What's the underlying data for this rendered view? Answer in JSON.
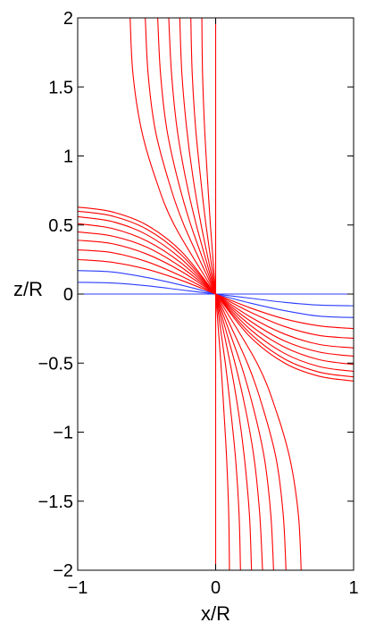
{
  "chart_data": {
    "type": "line",
    "title": "",
    "xlabel": "x/R",
    "ylabel": "z/R",
    "xlim": [
      -1,
      1
    ],
    "ylim": [
      -2,
      2
    ],
    "grid": false,
    "x_ticks": [
      -1,
      0,
      1
    ],
    "x_tick_labels": [
      "−1",
      "0",
      "1"
    ],
    "y_ticks": [
      -2,
      -1.5,
      -1,
      -0.5,
      0,
      0.5,
      1,
      1.5,
      2
    ],
    "y_tick_labels": [
      "−2",
      "−1.5",
      "−1",
      "−0.5",
      "0",
      "0.5",
      "1",
      "1.5",
      "2"
    ],
    "colors": {
      "red": "#ff0000",
      "blue": "#2a3cff"
    },
    "series": [
      {
        "color": "blue",
        "x": [
          -1,
          -0.75,
          -0.5,
          -0.25,
          0,
          0.25,
          0.5,
          0.75,
          1
        ],
        "y": [
          0,
          0,
          0,
          0,
          0,
          0,
          0,
          0,
          0
        ]
      },
      {
        "color": "blue",
        "x": [
          -1,
          -0.75,
          -0.5,
          -0.25,
          0,
          0.25,
          0.5,
          0.75,
          1
        ],
        "y": [
          0.085,
          0.08,
          0.06,
          0.03,
          0,
          -0.03,
          -0.06,
          -0.08,
          -0.085
        ]
      },
      {
        "color": "blue",
        "x": [
          -1,
          -0.75,
          -0.5,
          -0.25,
          0,
          0.25,
          0.5,
          0.75,
          1
        ],
        "y": [
          0.17,
          0.16,
          0.12,
          0.065,
          0,
          -0.065,
          -0.12,
          -0.16,
          -0.17
        ]
      },
      {
        "color": "red",
        "x": [
          -1,
          -0.75,
          -0.5,
          -0.25,
          0,
          0.25,
          0.5,
          0.75,
          1
        ],
        "y": [
          0.25,
          0.23,
          0.18,
          0.1,
          0,
          -0.1,
          -0.18,
          -0.23,
          -0.25
        ]
      },
      {
        "color": "red",
        "x": [
          -1,
          -0.75,
          -0.5,
          -0.25,
          0,
          0.25,
          0.5,
          0.75,
          1
        ],
        "y": [
          0.32,
          0.3,
          0.235,
          0.13,
          0,
          -0.13,
          -0.235,
          -0.3,
          -0.32
        ]
      },
      {
        "color": "red",
        "x": [
          -1,
          -0.75,
          -0.5,
          -0.25,
          0,
          0.25,
          0.5,
          0.75,
          1
        ],
        "y": [
          0.39,
          0.365,
          0.29,
          0.165,
          0,
          -0.165,
          -0.29,
          -0.365,
          -0.39
        ]
      },
      {
        "color": "red",
        "x": [
          -1,
          -0.75,
          -0.5,
          -0.25,
          0,
          0.25,
          0.5,
          0.75,
          1
        ],
        "y": [
          0.45,
          0.42,
          0.34,
          0.195,
          0,
          -0.195,
          -0.34,
          -0.42,
          -0.45
        ]
      },
      {
        "color": "red",
        "x": [
          -1,
          -0.75,
          -0.5,
          -0.25,
          0,
          0.25,
          0.5,
          0.75,
          1
        ],
        "y": [
          0.51,
          0.475,
          0.385,
          0.225,
          0,
          -0.225,
          -0.385,
          -0.475,
          -0.51
        ]
      },
      {
        "color": "red",
        "x": [
          -1,
          -0.75,
          -0.5,
          -0.25,
          0,
          0.25,
          0.5,
          0.75,
          1
        ],
        "y": [
          0.56,
          0.525,
          0.43,
          0.255,
          0,
          -0.255,
          -0.43,
          -0.525,
          -0.56
        ]
      },
      {
        "color": "red",
        "x": [
          -1,
          -0.75,
          -0.5,
          -0.25,
          0,
          0.25,
          0.5,
          0.75,
          1
        ],
        "y": [
          0.6,
          0.565,
          0.47,
          0.285,
          0,
          -0.285,
          -0.47,
          -0.565,
          -0.6
        ]
      },
      {
        "color": "red",
        "x": [
          -1,
          -0.75,
          -0.5,
          -0.25,
          0,
          0.25,
          0.5,
          0.75,
          1
        ],
        "y": [
          0.63,
          0.595,
          0.5,
          0.31,
          0,
          -0.31,
          -0.5,
          -0.595,
          -0.63
        ]
      },
      {
        "color": "red",
        "x": [
          0,
          0
        ],
        "y": [
          -2,
          2
        ]
      },
      {
        "color": "red",
        "x": [
          -0.62,
          -0.6,
          -0.54,
          -0.44,
          -0.3,
          0,
          0.3,
          0.44,
          0.54,
          0.6,
          0.62
        ],
        "y": [
          2,
          1.6,
          1.2,
          0.85,
          0.5,
          0,
          -0.5,
          -0.85,
          -1.2,
          -1.6,
          -2
        ]
      },
      {
        "color": "red",
        "x": [
          -0.51,
          -0.49,
          -0.44,
          -0.35,
          -0.23,
          0,
          0.23,
          0.35,
          0.44,
          0.49,
          0.51
        ],
        "y": [
          2,
          1.6,
          1.2,
          0.85,
          0.5,
          0,
          -0.5,
          -0.85,
          -1.2,
          -1.6,
          -2
        ]
      },
      {
        "color": "red",
        "x": [
          -0.42,
          -0.4,
          -0.355,
          -0.28,
          -0.18,
          0,
          0.18,
          0.28,
          0.355,
          0.4,
          0.42
        ],
        "y": [
          2,
          1.6,
          1.2,
          0.85,
          0.5,
          0,
          -0.5,
          -0.85,
          -1.2,
          -1.6,
          -2
        ]
      },
      {
        "color": "red",
        "x": [
          -0.34,
          -0.32,
          -0.28,
          -0.22,
          -0.14,
          0,
          0.14,
          0.22,
          0.28,
          0.32,
          0.34
        ],
        "y": [
          2,
          1.6,
          1.2,
          0.85,
          0.5,
          0,
          -0.5,
          -0.85,
          -1.2,
          -1.6,
          -2
        ]
      },
      {
        "color": "red",
        "x": [
          -0.26,
          -0.245,
          -0.21,
          -0.165,
          -0.105,
          0,
          0.105,
          0.165,
          0.21,
          0.245,
          0.26
        ],
        "y": [
          2,
          1.6,
          1.2,
          0.85,
          0.5,
          0,
          -0.5,
          -0.85,
          -1.2,
          -1.6,
          -2
        ]
      },
      {
        "color": "red",
        "x": [
          -0.18,
          -0.17,
          -0.145,
          -0.11,
          -0.07,
          0,
          0.07,
          0.11,
          0.145,
          0.17,
          0.18
        ],
        "y": [
          2,
          1.6,
          1.2,
          0.85,
          0.5,
          0,
          -0.5,
          -0.85,
          -1.2,
          -1.6,
          -2
        ]
      },
      {
        "color": "red",
        "x": [
          -0.1,
          -0.095,
          -0.08,
          -0.06,
          -0.038,
          0,
          0.038,
          0.06,
          0.08,
          0.095,
          0.1
        ],
        "y": [
          2,
          1.6,
          1.2,
          0.85,
          0.5,
          0,
          -0.5,
          -0.85,
          -1.2,
          -1.6,
          -2
        ]
      }
    ]
  }
}
